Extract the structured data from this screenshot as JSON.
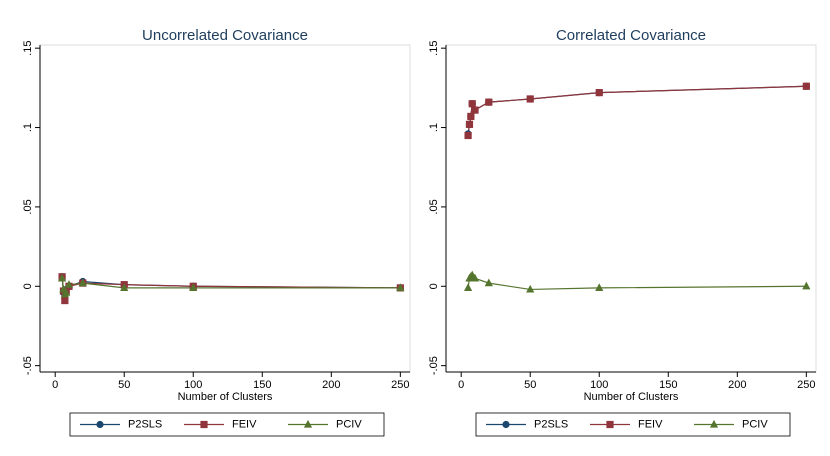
{
  "chart_data": [
    {
      "type": "line",
      "title": "Uncorrelated Covariance",
      "x_label": "Number of Clusters",
      "x": [
        5,
        6,
        7,
        8,
        10,
        20,
        50,
        100,
        250
      ],
      "series": [
        {
          "name": "P2SLS",
          "color": "#1a476f",
          "marker": "circle",
          "values": [
            0.006,
            -0.004,
            -0.008,
            -0.002,
            0.0,
            0.003,
            0.001,
            0.0,
            -0.001
          ]
        },
        {
          "name": "FEIV",
          "color": "#90353b",
          "marker": "square",
          "values": [
            0.006,
            -0.003,
            -0.009,
            -0.003,
            0.0,
            0.002,
            0.001,
            0.0,
            -0.001
          ]
        },
        {
          "name": "PCIV",
          "color": "#55752f",
          "marker": "triangle",
          "values": [
            0.005,
            -0.002,
            -0.005,
            -0.004,
            0.001,
            0.002,
            -0.001,
            -0.001,
            -0.001
          ]
        }
      ],
      "xlim": [
        -11,
        257
      ],
      "ylim": [
        -0.054,
        0.152
      ],
      "xticks": [
        0,
        50,
        100,
        150,
        200,
        250
      ],
      "yticks": [
        {
          "value": -0.05,
          "label": "-.05"
        },
        0,
        {
          "value": 0.05,
          "label": ".05"
        },
        {
          "value": 0.1,
          "label": ".1"
        },
        {
          "value": 0.15,
          "label": ".15"
        }
      ],
      "grid": false
    },
    {
      "type": "line",
      "title": "Correlated Covariance",
      "x_label": "Number of Clusters",
      "x": [
        5,
        6,
        7,
        8,
        10,
        20,
        50,
        100,
        250
      ],
      "series": [
        {
          "name": "P2SLS",
          "color": "#1a476f",
          "marker": "circle",
          "values": [
            0.096,
            0.102,
            0.107,
            0.115,
            0.111,
            0.116,
            0.118,
            0.122,
            0.126
          ]
        },
        {
          "name": "FEIV",
          "color": "#90353b",
          "marker": "square",
          "values": [
            0.095,
            0.102,
            0.107,
            0.115,
            0.111,
            0.116,
            0.118,
            0.122,
            0.126
          ]
        },
        {
          "name": "PCIV",
          "color": "#55752f",
          "marker": "triangle",
          "values": [
            -0.001,
            0.005,
            0.006,
            0.007,
            0.005,
            0.002,
            -0.002,
            -0.001,
            0.0
          ]
        }
      ],
      "xlim": [
        -11,
        257
      ],
      "ylim": [
        -0.054,
        0.152
      ],
      "xticks": [
        0,
        50,
        100,
        150,
        200,
        250
      ],
      "yticks": [
        {
          "value": -0.05,
          "label": "-.05"
        },
        0,
        {
          "value": 0.05,
          "label": ".05"
        },
        {
          "value": 0.1,
          "label": ".1"
        },
        {
          "value": 0.15,
          "label": ".15"
        }
      ],
      "grid": false
    }
  ]
}
